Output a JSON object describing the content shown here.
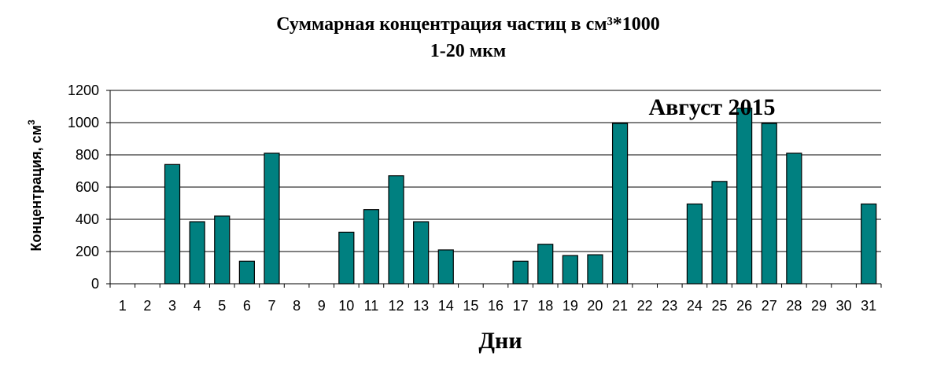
{
  "chart_data": {
    "type": "bar",
    "title": "Суммарная концентрация частиц в см³*1000",
    "subtitle": "1-20 мкм",
    "annotation": "Август 2015",
    "xlabel": "Дни",
    "ylabel": "Концентрация, см",
    "ylabel_sup": "3",
    "ylim": [
      0,
      1200
    ],
    "yticks": [
      "0",
      "200",
      "400",
      "600",
      "800",
      "1000",
      "1200"
    ],
    "grid": true,
    "legend": "none",
    "bar_color": "#008080",
    "categories": [
      "1",
      "2",
      "3",
      "4",
      "5",
      "6",
      "7",
      "8",
      "9",
      "10",
      "11",
      "12",
      "13",
      "14",
      "15",
      "16",
      "17",
      "18",
      "19",
      "20",
      "21",
      "22",
      "23",
      "24",
      "25",
      "26",
      "27",
      "28",
      "29",
      "30",
      "31"
    ],
    "values": [
      0,
      0,
      740,
      385,
      420,
      140,
      810,
      0,
      0,
      320,
      460,
      670,
      385,
      210,
      0,
      0,
      140,
      245,
      175,
      180,
      995,
      0,
      0,
      495,
      635,
      1090,
      995,
      810,
      0,
      0,
      495
    ]
  }
}
